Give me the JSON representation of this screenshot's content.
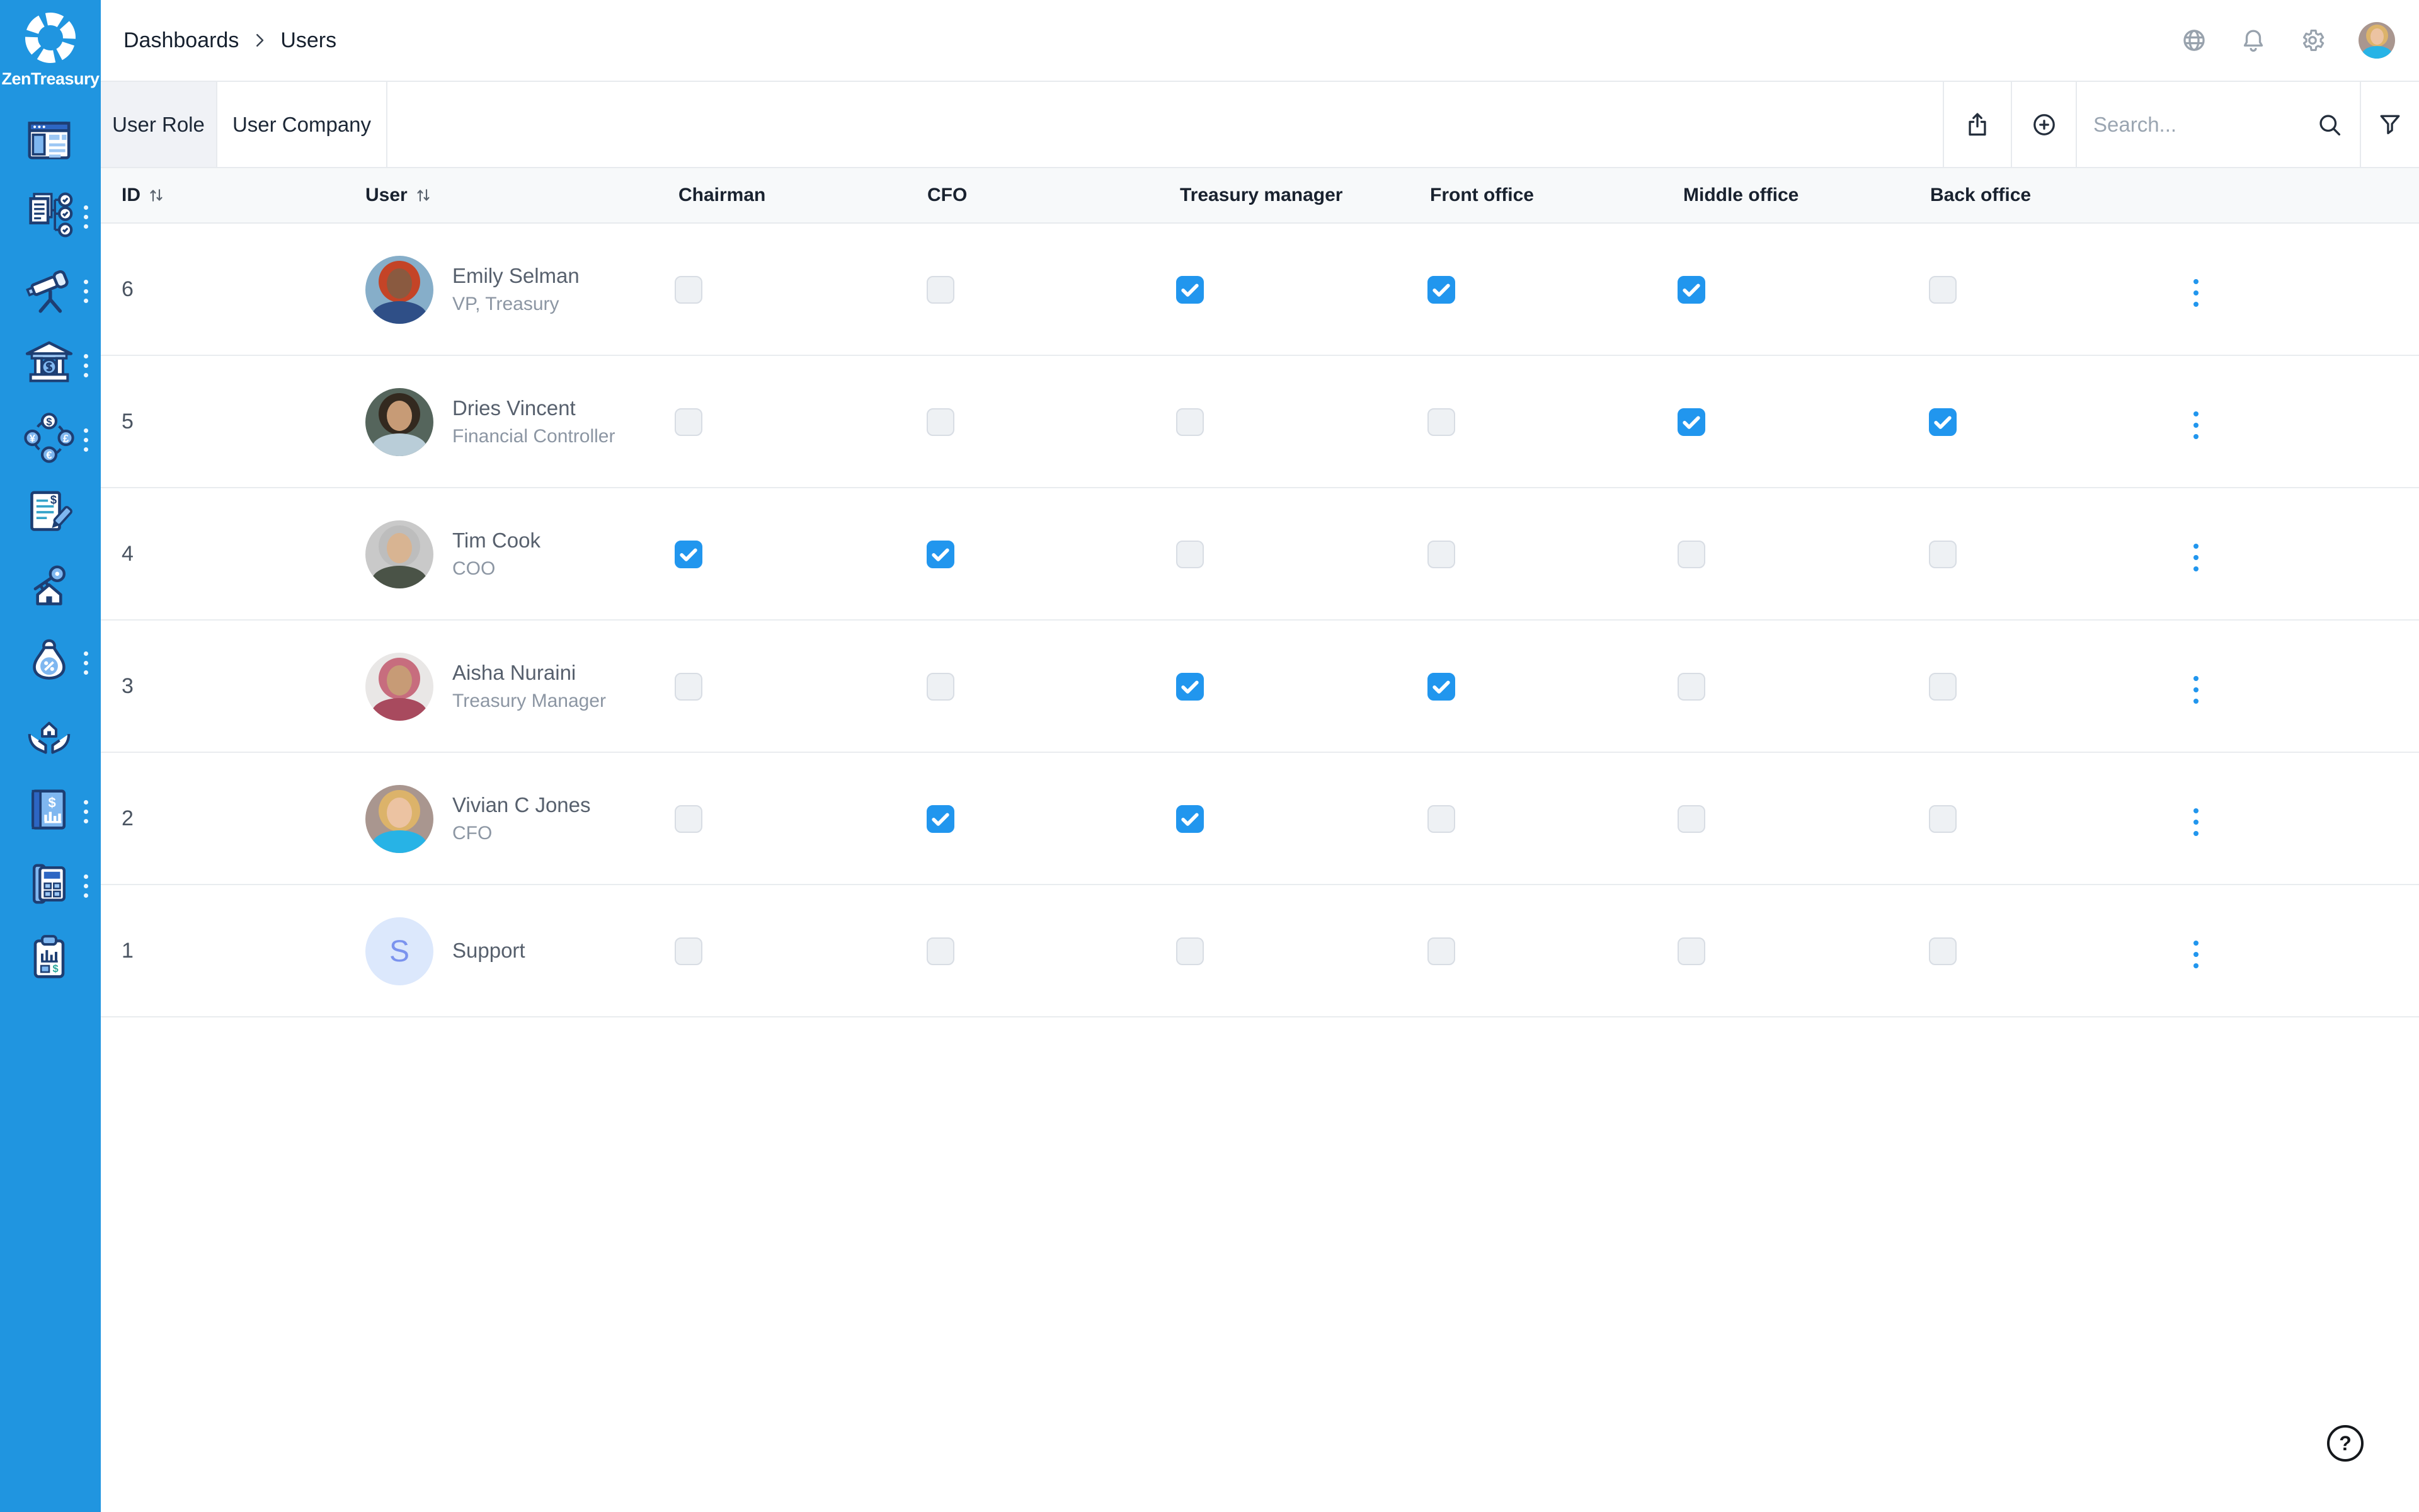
{
  "brand": {
    "name": "ZenTreasury"
  },
  "breadcrumb": {
    "items": [
      "Dashboards",
      "Users"
    ]
  },
  "header": {
    "icons": [
      "globe-icon",
      "bell-icon",
      "gear-icon"
    ],
    "avatar": {
      "kind": "photo",
      "bg": "#a9968f",
      "hair": "#dcb36a",
      "skin": "#ecc3a2",
      "shirt": "#27b3e6"
    }
  },
  "tabs": [
    {
      "label": "User Role",
      "active": true
    },
    {
      "label": "User Company",
      "active": false
    }
  ],
  "toolbar": {
    "icons": [
      "share-icon",
      "add-circle-icon",
      "search-icon",
      "filter-icon"
    ],
    "search_placeholder": "Search...",
    "search_value": ""
  },
  "table": {
    "columns": [
      "ID",
      "User",
      "Chairman",
      "CFO",
      "Treasury manager",
      "Front office",
      "Middle office",
      "Back office"
    ],
    "sortable_columns": [
      "ID",
      "User"
    ],
    "rows": [
      {
        "id": "6",
        "name": "Emily Selman",
        "title": "VP, Treasury",
        "avatar": {
          "kind": "photo",
          "bg": "#86aec9",
          "hair": "#c44427",
          "skin": "#8a5a40",
          "shirt": "#2f4f87"
        },
        "roles": [
          false,
          false,
          true,
          true,
          true,
          false
        ]
      },
      {
        "id": "5",
        "name": "Dries Vincent",
        "title": "Financial Controller",
        "avatar": {
          "kind": "photo",
          "bg": "#55655c",
          "hair": "#33291f",
          "skin": "#c79b76",
          "shirt": "#b9cdd8"
        },
        "roles": [
          false,
          false,
          false,
          false,
          true,
          true
        ]
      },
      {
        "id": "4",
        "name": "Tim Cook",
        "title": "COO",
        "avatar": {
          "kind": "photo",
          "bg": "#c9c9c9",
          "hair": "#bdbdbd",
          "skin": "#d8b492",
          "shirt": "#4a5347"
        },
        "roles": [
          true,
          true,
          false,
          false,
          false,
          false
        ]
      },
      {
        "id": "3",
        "name": "Aisha Nuraini",
        "title": "Treasury Manager",
        "avatar": {
          "kind": "photo",
          "bg": "#e9e7e6",
          "hair": "#c76d7e",
          "skin": "#c79b76",
          "shirt": "#a84a5e"
        },
        "roles": [
          false,
          false,
          true,
          true,
          false,
          false
        ]
      },
      {
        "id": "2",
        "name": "Vivian C Jones",
        "title": "CFO",
        "avatar": {
          "kind": "photo",
          "bg": "#a9968f",
          "hair": "#dcb36a",
          "skin": "#ecc3a2",
          "shirt": "#27b3e6"
        },
        "roles": [
          false,
          true,
          true,
          false,
          false,
          false
        ]
      },
      {
        "id": "1",
        "name": "Support",
        "title": "",
        "avatar": {
          "kind": "initial",
          "text": "S",
          "bg": "#dce8fc",
          "fg": "#7b93ee"
        },
        "roles": [
          false,
          false,
          false,
          false,
          false,
          false
        ]
      }
    ]
  },
  "sidebar": {
    "items": [
      {
        "icon": "dashboard-icon",
        "menu_dots": false
      },
      {
        "icon": "workflow-approvals-icon",
        "menu_dots": true
      },
      {
        "icon": "telescope-icon",
        "menu_dots": true
      },
      {
        "icon": "bank-icon",
        "menu_dots": true
      },
      {
        "icon": "currency-exchange-icon",
        "menu_dots": true
      },
      {
        "icon": "contract-signing-icon",
        "menu_dots": false
      },
      {
        "icon": "house-key-icon",
        "menu_dots": false
      },
      {
        "icon": "money-bag-icon",
        "menu_dots": true
      },
      {
        "icon": "hands-house-icon",
        "menu_dots": false
      },
      {
        "icon": "ledger-icon",
        "menu_dots": true
      },
      {
        "icon": "calculator-device-icon",
        "menu_dots": true
      },
      {
        "icon": "report-clipboard-icon",
        "menu_dots": false
      }
    ]
  },
  "help": {
    "label": "?"
  },
  "colors": {
    "sidebar_blue": "#2095e0",
    "checkbox_checked": "#2196ee",
    "kebab_blue": "#2196ee",
    "active_tab_bg": "#f0f2f6",
    "table_header_bg": "#f7f9fa",
    "border": "#e7eaee",
    "header_text": "#19222f",
    "name_text": "#57606d",
    "title_text": "#8c96a3"
  }
}
